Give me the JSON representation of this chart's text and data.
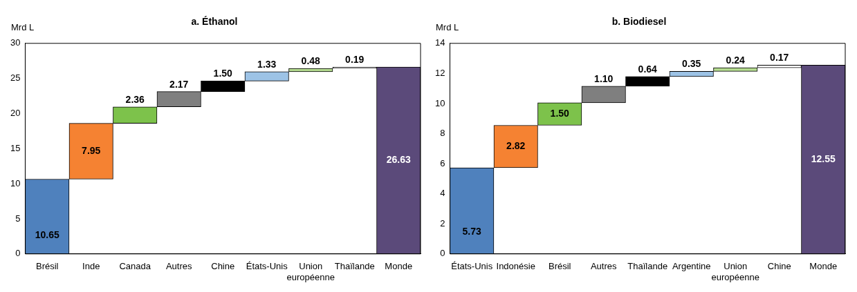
{
  "chart_data": [
    {
      "type": "bar",
      "title": "a. Éthanol",
      "ylabel": "Mrd L",
      "categories": [
        "Brésil",
        "Inde",
        "Canada",
        "Autres",
        "Chine",
        "États-Unis",
        "Union européenne",
        "Thaïlande",
        "Monde"
      ],
      "values": [
        10.65,
        7.95,
        2.36,
        2.17,
        1.5,
        1.33,
        0.48,
        0.19,
        26.63
      ],
      "base": [
        0,
        10.65,
        18.6,
        20.96,
        23.13,
        24.63,
        25.96,
        26.44,
        0
      ],
      "colors": [
        "#4f81bd",
        "#f58232",
        "#7dc24b",
        "#7f7f7f",
        "#000000",
        "#9dc3e6",
        "#b5dc90",
        "#ffffff",
        "#5b4a7a"
      ],
      "value_labels": [
        "10.65",
        "7.95",
        "2.36",
        "2.17",
        "1.50",
        "1.33",
        "0.48",
        "0.19",
        "26.63"
      ],
      "ylim": [
        0,
        30
      ],
      "yticks": [
        0,
        5,
        10,
        15,
        20,
        25,
        30
      ],
      "grid": false,
      "legend": false
    },
    {
      "type": "bar",
      "title": "b. Biodiesel",
      "ylabel": "Mrd L",
      "categories": [
        "États-Unis",
        "Indonésie",
        "Brésil",
        "Autres",
        "Thaïlande",
        "Argentine",
        "Union européenne",
        "Chine",
        "Monde"
      ],
      "values": [
        5.73,
        2.82,
        1.5,
        1.1,
        0.64,
        0.35,
        0.24,
        0.17,
        12.55
      ],
      "base": [
        0,
        5.73,
        8.55,
        10.05,
        11.15,
        11.79,
        12.14,
        12.38,
        0
      ],
      "colors": [
        "#4f81bd",
        "#f58232",
        "#7dc24b",
        "#7f7f7f",
        "#000000",
        "#9dc3e6",
        "#b5dc90",
        "#ffffff",
        "#5b4a7a"
      ],
      "value_labels": [
        "5.73",
        "2.82",
        "1.50",
        "1.10",
        "0.64",
        "0.35",
        "0.24",
        "0.17",
        "12.55"
      ],
      "ylim": [
        0,
        14
      ],
      "yticks": [
        0,
        2,
        4,
        6,
        8,
        10,
        12,
        14
      ],
      "grid": false,
      "legend": false
    }
  ]
}
